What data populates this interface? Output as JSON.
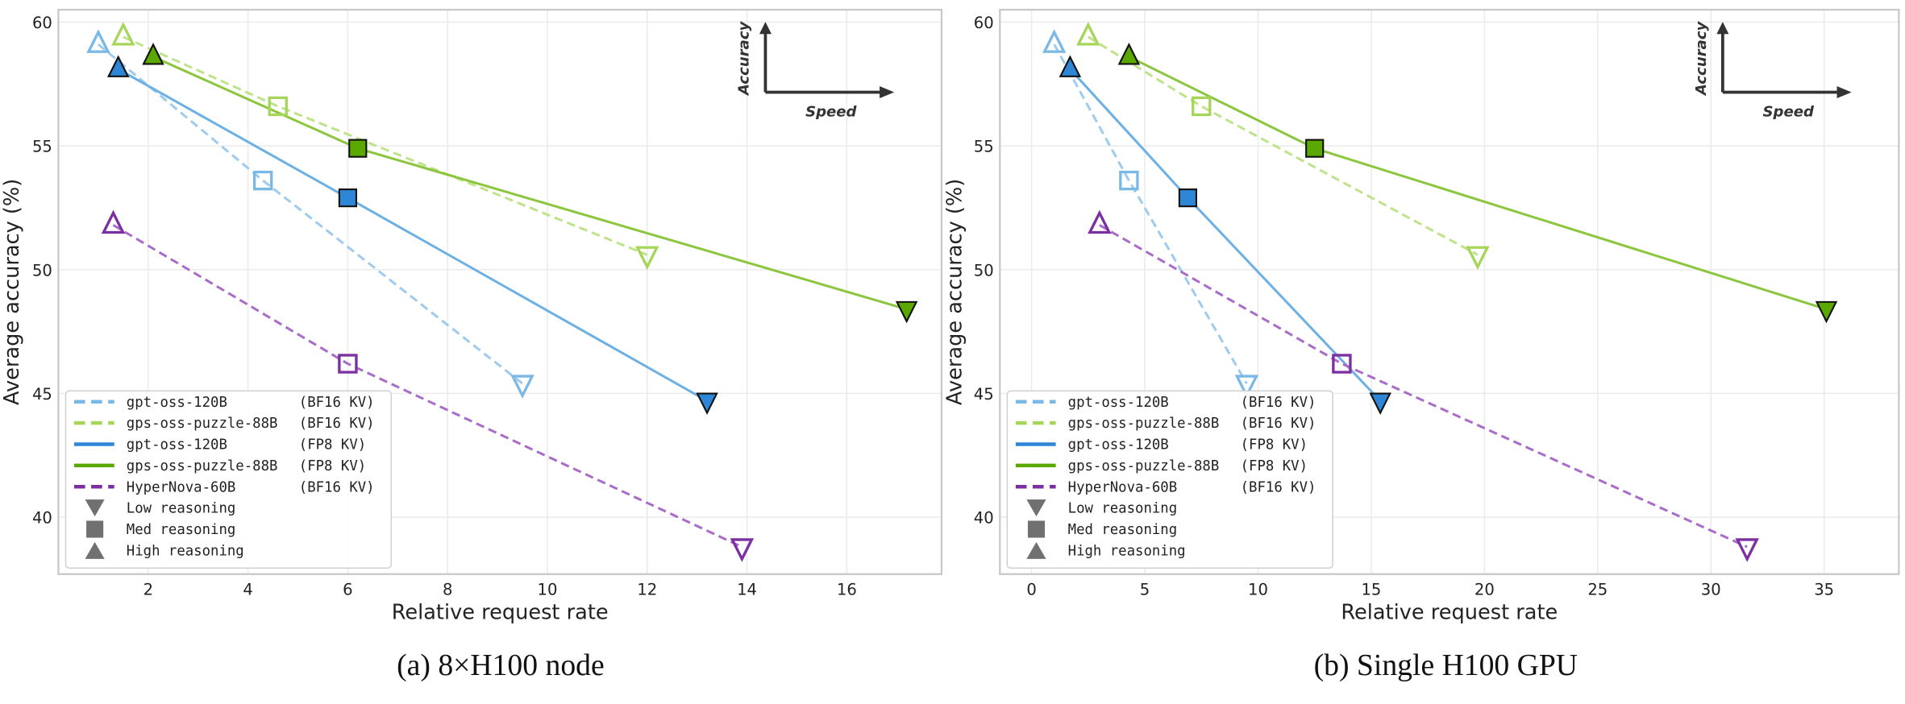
{
  "chart_data": [
    {
      "type": "line",
      "caption": "(a) 8×H100 node",
      "xlabel": "Relative request rate",
      "ylabel": "Average accuracy (%)",
      "xlim": [
        0.2,
        17.9
      ],
      "ylim": [
        37.7,
        60.5
      ],
      "xticks": [
        2,
        4,
        6,
        8,
        10,
        12,
        14,
        16
      ],
      "yticks": [
        40,
        45,
        50,
        55,
        60
      ],
      "grid": true,
      "legend_position": "bottom-left",
      "inset": {
        "y_arrow_label": "Accuracy",
        "x_arrow_label": "Speed"
      },
      "series": [
        {
          "name": "gpt-oss-120B",
          "tag": "(BF16 KV)",
          "color": "#7ab8e6",
          "line_color": "#9fcbee",
          "style": "dashed",
          "filled": false,
          "points": [
            {
              "level": "High",
              "x": 1.0,
              "y": 59.1
            },
            {
              "level": "Med",
              "x": 4.3,
              "y": 53.6
            },
            {
              "level": "Low",
              "x": 9.5,
              "y": 45.4
            }
          ]
        },
        {
          "name": "gps-oss-puzzle-88B",
          "tag": "(BF16 KV)",
          "color": "#a5d65a",
          "line_color": "#bfe38a",
          "style": "dashed",
          "filled": false,
          "points": [
            {
              "level": "High",
              "x": 1.5,
              "y": 59.4
            },
            {
              "level": "Med",
              "x": 4.6,
              "y": 56.6
            },
            {
              "level": "Low",
              "x": 12.0,
              "y": 50.6
            }
          ]
        },
        {
          "name": "gpt-oss-120B",
          "tag": "(FP8 KV)",
          "color": "#2e86d6",
          "line_color": "#6cb0e4",
          "style": "solid",
          "filled": true,
          "points": [
            {
              "level": "High",
              "x": 1.4,
              "y": 58.1
            },
            {
              "level": "Med",
              "x": 6.0,
              "y": 52.9
            },
            {
              "level": "Low",
              "x": 13.2,
              "y": 44.7
            }
          ]
        },
        {
          "name": "gps-oss-puzzle-88B",
          "tag": "(FP8 KV)",
          "color": "#5aa800",
          "line_color": "#8cc63f",
          "style": "solid",
          "filled": true,
          "points": [
            {
              "level": "High",
              "x": 2.1,
              "y": 58.6
            },
            {
              "level": "Med",
              "x": 6.2,
              "y": 54.9
            },
            {
              "level": "Low",
              "x": 17.2,
              "y": 48.4
            }
          ]
        },
        {
          "name": "HyperNova-60B",
          "tag": "(BF16 KV)",
          "color": "#7b2fa0",
          "line_color": "#a96cc9",
          "style": "dashed",
          "filled": false,
          "points": [
            {
              "level": "High",
              "x": 1.3,
              "y": 51.8
            },
            {
              "level": "Med",
              "x": 6.0,
              "y": 46.2
            },
            {
              "level": "Low",
              "x": 13.9,
              "y": 38.8
            }
          ]
        }
      ],
      "marker_legend": [
        {
          "label": "Low reasoning",
          "marker": "triangle-down"
        },
        {
          "label": "Med reasoning",
          "marker": "square"
        },
        {
          "label": "High reasoning",
          "marker": "triangle-up"
        }
      ]
    },
    {
      "type": "line",
      "caption": "(b) Single H100 GPU",
      "xlabel": "Relative request rate",
      "ylabel": "Average accuracy (%)",
      "xlim": [
        -1.4,
        38.3
      ],
      "ylim": [
        37.7,
        60.5
      ],
      "xticks": [
        0,
        5,
        10,
        15,
        20,
        25,
        30,
        35
      ],
      "yticks": [
        40,
        45,
        50,
        55,
        60
      ],
      "grid": true,
      "legend_position": "bottom-left",
      "inset": {
        "y_arrow_label": "Accuracy",
        "x_arrow_label": "Speed"
      },
      "series": [
        {
          "name": "gpt-oss-120B",
          "tag": "(BF16 KV)",
          "color": "#7ab8e6",
          "line_color": "#9fcbee",
          "style": "dashed",
          "filled": false,
          "points": [
            {
              "level": "High",
              "x": 1.0,
              "y": 59.1
            },
            {
              "level": "Med",
              "x": 4.3,
              "y": 53.6
            },
            {
              "level": "Low",
              "x": 9.5,
              "y": 45.4
            }
          ]
        },
        {
          "name": "gps-oss-puzzle-88B",
          "tag": "(BF16 KV)",
          "color": "#a5d65a",
          "line_color": "#bfe38a",
          "style": "dashed",
          "filled": false,
          "points": [
            {
              "level": "High",
              "x": 2.5,
              "y": 59.4
            },
            {
              "level": "Med",
              "x": 7.5,
              "y": 56.6
            },
            {
              "level": "Low",
              "x": 19.7,
              "y": 50.6
            }
          ]
        },
        {
          "name": "gpt-oss-120B",
          "tag": "(FP8 KV)",
          "color": "#2e86d6",
          "line_color": "#6cb0e4",
          "style": "solid",
          "filled": true,
          "points": [
            {
              "level": "High",
              "x": 1.7,
              "y": 58.1
            },
            {
              "level": "Med",
              "x": 6.9,
              "y": 52.9
            },
            {
              "level": "Low",
              "x": 15.4,
              "y": 44.7
            }
          ]
        },
        {
          "name": "gps-oss-puzzle-88B",
          "tag": "(FP8 KV)",
          "color": "#5aa800",
          "line_color": "#8cc63f",
          "style": "solid",
          "filled": true,
          "points": [
            {
              "level": "High",
              "x": 4.3,
              "y": 58.6
            },
            {
              "level": "Med",
              "x": 12.5,
              "y": 54.9
            },
            {
              "level": "Low",
              "x": 35.1,
              "y": 48.4
            }
          ]
        },
        {
          "name": "HyperNova-60B",
          "tag": "(BF16 KV)",
          "color": "#7b2fa0",
          "line_color": "#a96cc9",
          "style": "dashed",
          "filled": false,
          "points": [
            {
              "level": "High",
              "x": 3.0,
              "y": 51.8
            },
            {
              "level": "Med",
              "x": 13.7,
              "y": 46.2
            },
            {
              "level": "Low",
              "x": 31.6,
              "y": 38.8
            }
          ]
        }
      ],
      "marker_legend": [
        {
          "label": "Low reasoning",
          "marker": "triangle-down"
        },
        {
          "label": "Med reasoning",
          "marker": "square"
        },
        {
          "label": "High reasoning",
          "marker": "triangle-up"
        }
      ]
    }
  ]
}
